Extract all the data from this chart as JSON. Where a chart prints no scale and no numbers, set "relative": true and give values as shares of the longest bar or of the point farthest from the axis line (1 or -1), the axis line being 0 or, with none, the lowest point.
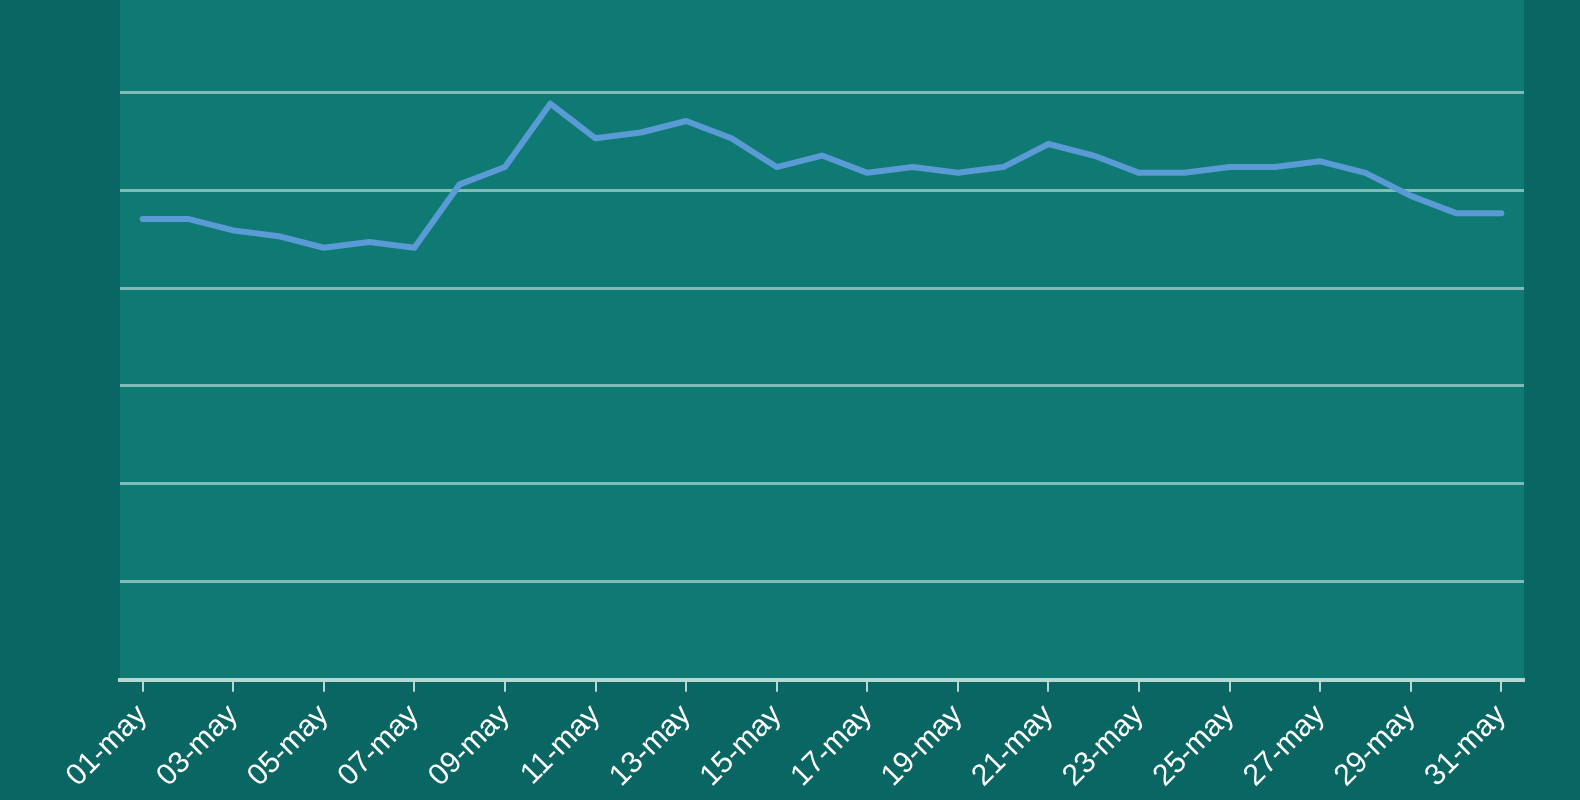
{
  "chart_data": {
    "type": "line",
    "relative": true,
    "grid": "y",
    "marker": "none",
    "line_style": "solid",
    "legend": false,
    "categories": [
      "01-may",
      null,
      "03-may",
      null,
      "05-may",
      null,
      "07-may",
      null,
      "09-may",
      null,
      "11-may",
      null,
      "13-may",
      null,
      "15-may",
      null,
      "17-may",
      null,
      "19-may",
      null,
      "21-may",
      null,
      "23-may",
      null,
      "25-may",
      null,
      "27-may",
      null,
      "29-may",
      null,
      "31-may"
    ],
    "series": [
      {
        "color": "#5b9bd5",
        "values": [
          0.8,
          0.8,
          0.78,
          0.77,
          0.75,
          0.76,
          0.75,
          0.86,
          0.89,
          1,
          0.94,
          0.95,
          0.97,
          0.94,
          0.89,
          0.91,
          0.88,
          0.89,
          0.88,
          0.89,
          0.93,
          0.91,
          0.88,
          0.88,
          0.89,
          0.89,
          0.9,
          0.88,
          0.84,
          0.81,
          0.81
        ]
      }
    ]
  }
}
